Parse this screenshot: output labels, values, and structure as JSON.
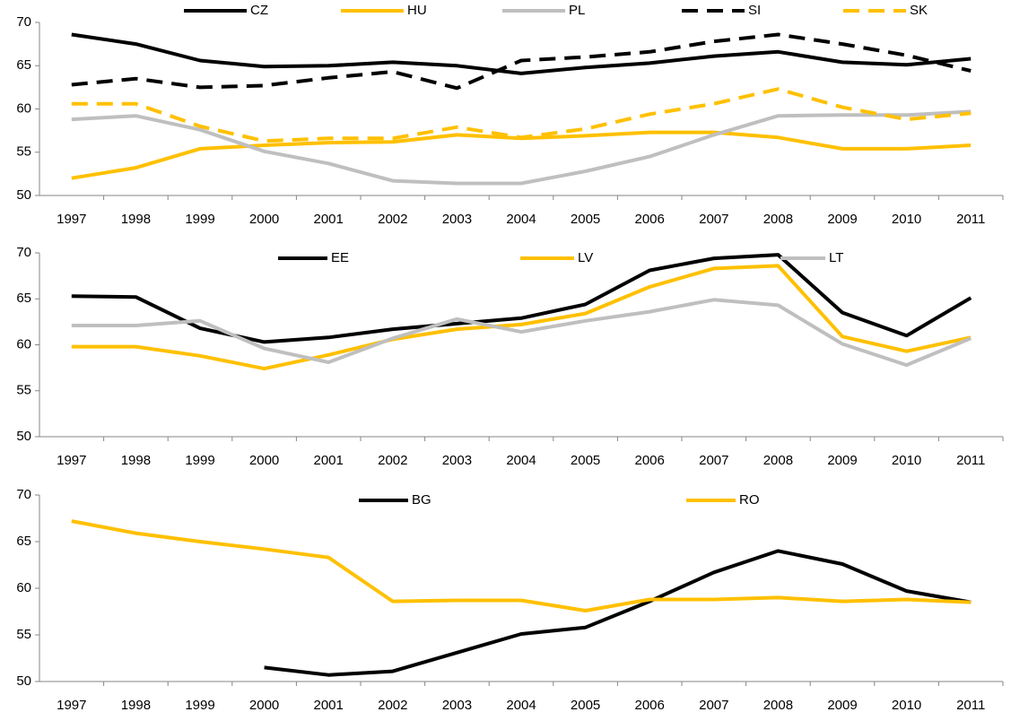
{
  "chart_data": [
    {
      "type": "line",
      "categories": [
        "1997",
        "1998",
        "1999",
        "2000",
        "2001",
        "2002",
        "2003",
        "2004",
        "2005",
        "2006",
        "2007",
        "2008",
        "2009",
        "2010",
        "2011"
      ],
      "series": [
        {
          "name": "CZ",
          "color": "#000000",
          "dashed": false,
          "values": [
            68.6,
            67.5,
            65.6,
            64.9,
            65.0,
            65.4,
            65.0,
            64.1,
            64.8,
            65.3,
            66.1,
            66.6,
            65.4,
            65.1,
            65.8
          ]
        },
        {
          "name": "HU",
          "color": "#ffc000",
          "dashed": false,
          "values": [
            52.0,
            53.2,
            55.4,
            55.8,
            56.1,
            56.2,
            57.0,
            56.6,
            56.9,
            57.3,
            57.3,
            56.7,
            55.4,
            55.4,
            55.8
          ]
        },
        {
          "name": "PL",
          "color": "#bfbfbf",
          "dashed": false,
          "values": [
            58.8,
            59.2,
            57.6,
            55.1,
            53.7,
            51.7,
            51.4,
            51.4,
            52.8,
            54.5,
            57.0,
            59.2,
            59.3,
            59.3,
            59.7
          ]
        },
        {
          "name": "SI",
          "color": "#000000",
          "dashed": true,
          "values": [
            62.8,
            63.5,
            62.5,
            62.7,
            63.6,
            64.3,
            62.4,
            65.6,
            66.0,
            66.6,
            67.8,
            68.6,
            67.5,
            66.2,
            64.4
          ]
        },
        {
          "name": "SK",
          "color": "#ffc000",
          "dashed": true,
          "values": [
            60.6,
            60.6,
            58.0,
            56.3,
            56.6,
            56.6,
            57.9,
            56.7,
            57.7,
            59.4,
            60.6,
            62.3,
            60.2,
            58.8,
            59.5
          ]
        }
      ],
      "ylim": [
        50,
        70
      ],
      "yticks": [
        50,
        55,
        60,
        65,
        70
      ],
      "grid": false,
      "legend": "top"
    },
    {
      "type": "line",
      "categories": [
        "1997",
        "1998",
        "1999",
        "2000",
        "2001",
        "2002",
        "2003",
        "2004",
        "2005",
        "2006",
        "2007",
        "2008",
        "2009",
        "2010",
        "2011"
      ],
      "series": [
        {
          "name": "EE",
          "color": "#000000",
          "dashed": false,
          "values": [
            65.3,
            65.2,
            61.8,
            60.3,
            60.8,
            61.7,
            62.3,
            62.9,
            64.4,
            68.1,
            69.4,
            69.8,
            63.5,
            61.0,
            65.1
          ]
        },
        {
          "name": "LV",
          "color": "#ffc000",
          "dashed": false,
          "values": [
            59.8,
            59.8,
            58.8,
            57.4,
            58.9,
            60.6,
            61.7,
            62.2,
            63.4,
            66.3,
            68.3,
            68.6,
            60.9,
            59.3,
            60.8
          ]
        },
        {
          "name": "LT",
          "color": "#bfbfbf",
          "dashed": false,
          "values": [
            62.1,
            62.1,
            62.6,
            59.6,
            58.1,
            60.7,
            62.8,
            61.4,
            62.6,
            63.6,
            64.9,
            64.3,
            60.1,
            57.8,
            60.7
          ]
        }
      ],
      "ylim": [
        50,
        70
      ],
      "yticks": [
        50,
        55,
        60,
        65,
        70
      ],
      "grid": false,
      "legend": "top"
    },
    {
      "type": "line",
      "categories": [
        "1997",
        "1998",
        "1999",
        "2000",
        "2001",
        "2002",
        "2003",
        "2004",
        "2005",
        "2006",
        "2007",
        "2008",
        "2009",
        "2010",
        "2011"
      ],
      "series": [
        {
          "name": "BG",
          "color": "#000000",
          "dashed": false,
          "values": [
            null,
            null,
            null,
            51.5,
            50.7,
            51.1,
            53.1,
            55.1,
            55.8,
            58.6,
            61.7,
            64.0,
            62.6,
            59.7,
            58.5
          ]
        },
        {
          "name": "RO",
          "color": "#ffc000",
          "dashed": false,
          "values": [
            67.2,
            65.9,
            65.0,
            64.2,
            63.3,
            58.6,
            58.7,
            58.7,
            57.6,
            58.8,
            58.8,
            59.0,
            58.6,
            58.8,
            58.5
          ]
        }
      ],
      "ylim": [
        50,
        70
      ],
      "yticks": [
        50,
        55,
        60,
        65,
        70
      ],
      "grid": false,
      "legend": "top"
    }
  ]
}
